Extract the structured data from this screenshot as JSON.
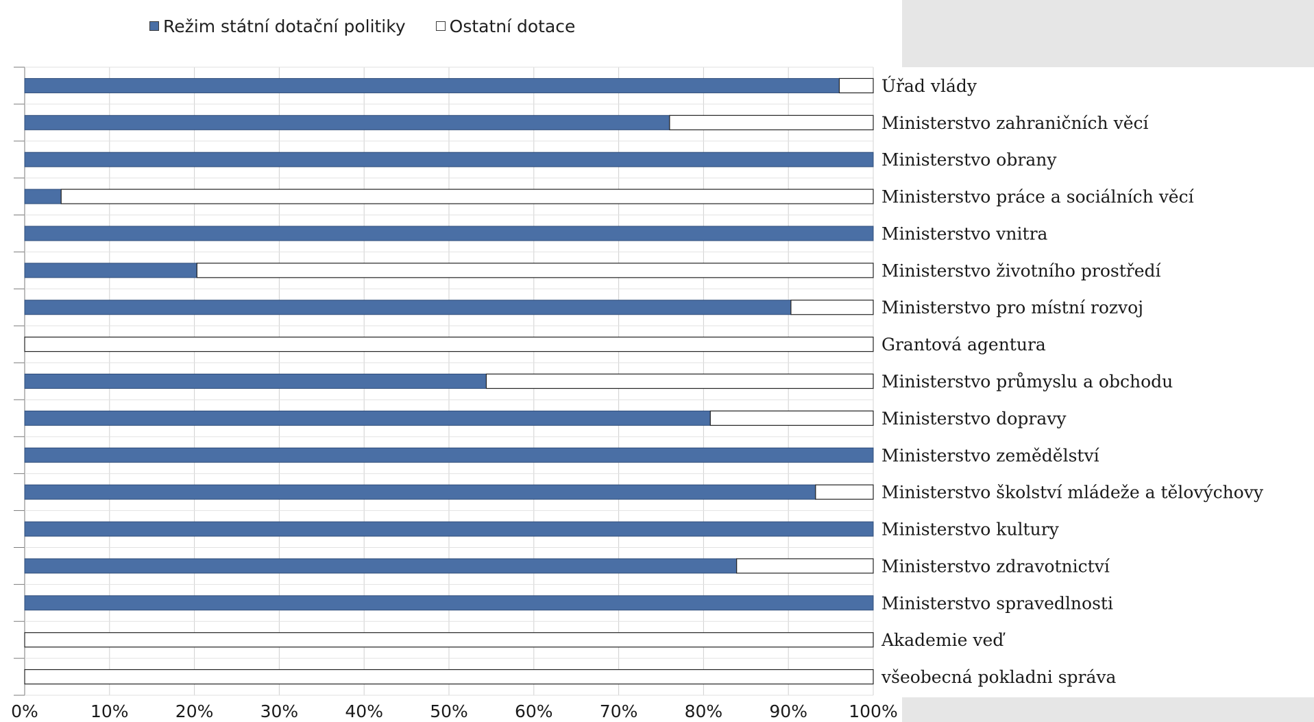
{
  "chart_data": {
    "type": "bar",
    "orientation": "horizontal",
    "stacked": "percent",
    "categories": [
      "Úřad vlády",
      "Ministerstvo zahraničních věcí",
      "Ministerstvo obrany",
      "Ministerstvo práce a sociálních věcí",
      "Ministerstvo vnitra",
      "Ministerstvo životního prostředí",
      "Ministerstvo pro místní rozvoj",
      "Grantová agentura",
      "Ministerstvo průmyslu a obchodu",
      "Ministerstvo dopravy",
      "Ministerstvo zemědělství",
      "Ministerstvo školství mládeže a tělovýchovy",
      "Ministerstvo kultury",
      "Ministerstvo zdravotnictví",
      "Ministerstvo spravedlnosti",
      "Akademie veď",
      "všeobecná pokladni správa"
    ],
    "series": [
      {
        "name": "Režim státní dotační politiky",
        "color": "#4a6fa5",
        "values": [
          96,
          76,
          100,
          4.3,
          100,
          20.3,
          90.3,
          0,
          54.4,
          80.8,
          100,
          93.2,
          100,
          83.9,
          100,
          0,
          0
        ]
      },
      {
        "name": "Ostatní dotace",
        "color": "#ffffff",
        "values": [
          4,
          24,
          0,
          95.7,
          0,
          79.7,
          9.7,
          100,
          45.6,
          19.2,
          0,
          6.8,
          0,
          16.1,
          0,
          100,
          100
        ]
      }
    ],
    "x_ticks": [
      "0%",
      "10%",
      "20%",
      "30%",
      "40%",
      "50%",
      "60%",
      "70%",
      "80%",
      "90%",
      "100%"
    ],
    "xlim": [
      0,
      100
    ],
    "grid": "vertical",
    "legend_position": "top",
    "category_labels_side": "right",
    "title": "",
    "xlabel": "",
    "ylabel": ""
  }
}
